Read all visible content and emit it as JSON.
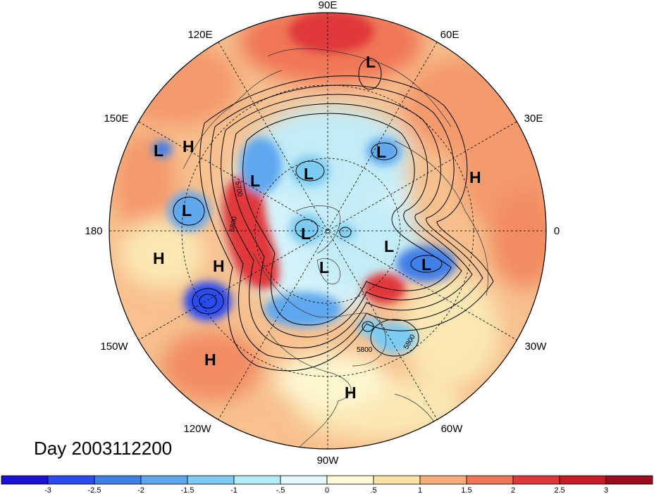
{
  "title": "Day 2003112200",
  "longitude_labels": {
    "deg90E": "90E",
    "deg60E": "60E",
    "deg120E": "120E",
    "deg30E": "30E",
    "deg150E": "150E",
    "deg180": "180",
    "deg0": "0",
    "deg150W": "150W",
    "deg30W": "30W",
    "deg120W": "120W",
    "deg60W": "60W",
    "deg90W": "90W"
  },
  "pressure_centers": [
    {
      "label": "L"
    },
    {
      "label": "L"
    },
    {
      "label": "L"
    },
    {
      "label": "L"
    },
    {
      "label": "L"
    },
    {
      "label": "L"
    },
    {
      "label": "L"
    },
    {
      "label": "L"
    },
    {
      "label": "L"
    },
    {
      "label": "L"
    },
    {
      "label": "H"
    },
    {
      "label": "H"
    },
    {
      "label": "H"
    },
    {
      "label": "H"
    },
    {
      "label": "H"
    },
    {
      "label": "H"
    }
  ],
  "contour_labels": [
    "5700",
    "5800",
    "5800",
    "5800"
  ],
  "colorbar": {
    "tick_labels": [
      "-3",
      "-2.5",
      "-2",
      "-1.5",
      "-1",
      "-.5",
      "0",
      ".5",
      "1",
      "1.5",
      "2",
      "2.5",
      "3"
    ],
    "colors": [
      "#1a10d6",
      "#2a4cf0",
      "#3f7fe8",
      "#5ea7ee",
      "#7ccbf2",
      "#b3ecf8",
      "#e2f8fc",
      "#fdfbd8",
      "#f9e2a4",
      "#f7ad78",
      "#ef7656",
      "#e0383a",
      "#c81a26",
      "#9d0a1c"
    ]
  }
}
